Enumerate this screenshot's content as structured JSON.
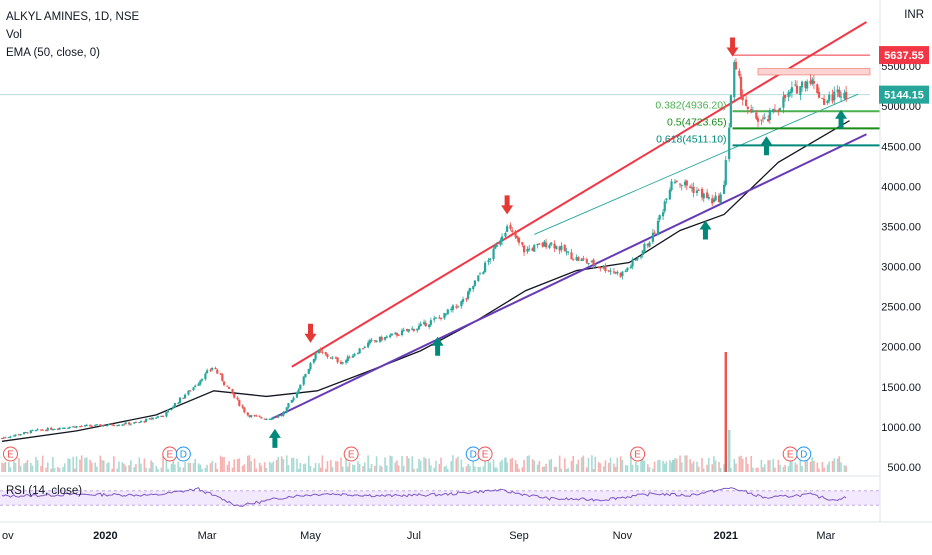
{
  "header": {
    "title": "ALKYL AMINES, 1D, NSE",
    "volume_label": "Vol",
    "ema_label": "EMA (50, close, 0)",
    "rsi_label": "RSI (14, close)",
    "currency": "INR"
  },
  "chart_data": {
    "type": "line",
    "title": "ALKYL AMINES, 1D, NSE",
    "ylim": [
      400,
      6100
    ],
    "y_ticks": [
      500,
      1000,
      1500,
      2000,
      2500,
      3000,
      3500,
      4000,
      4500,
      5000,
      5500
    ],
    "y_tick_labels": [
      "500.00",
      "1000.00",
      "1500.00",
      "2000.00",
      "2500.00",
      "3000.00",
      "3500.00",
      "4000.00",
      "4500.00",
      "5000.00",
      "5500.00"
    ],
    "x_tick_labels": [
      "ov",
      "2020",
      "Mar",
      "May",
      "Jul",
      "Sep",
      "Nov",
      "2021",
      "Mar"
    ],
    "x_tick_dates": [
      "2019-11-01",
      "2020-01-01",
      "2020-03-01",
      "2020-05-01",
      "2020-07-01",
      "2020-09-01",
      "2020-11-01",
      "2021-01-01",
      "2021-03-01"
    ],
    "grid": false,
    "price": [
      {
        "x": "2019-11-01",
        "y": 860
      },
      {
        "x": "2019-11-20",
        "y": 950
      },
      {
        "x": "2019-12-10",
        "y": 1000
      },
      {
        "x": "2019-12-31",
        "y": 1020
      },
      {
        "x": "2020-01-20",
        "y": 1050
      },
      {
        "x": "2020-02-05",
        "y": 1150
      },
      {
        "x": "2020-02-20",
        "y": 1450
      },
      {
        "x": "2020-03-05",
        "y": 1750
      },
      {
        "x": "2020-03-15",
        "y": 1450
      },
      {
        "x": "2020-03-25",
        "y": 1150
      },
      {
        "x": "2020-04-05",
        "y": 1100
      },
      {
        "x": "2020-04-15",
        "y": 1150
      },
      {
        "x": "2020-04-25",
        "y": 1500
      },
      {
        "x": "2020-05-05",
        "y": 1950
      },
      {
        "x": "2020-05-20",
        "y": 1800
      },
      {
        "x": "2020-06-05",
        "y": 2050
      },
      {
        "x": "2020-06-20",
        "y": 2150
      },
      {
        "x": "2020-07-05",
        "y": 2250
      },
      {
        "x": "2020-07-20",
        "y": 2400
      },
      {
        "x": "2020-08-01",
        "y": 2600
      },
      {
        "x": "2020-08-15",
        "y": 3100
      },
      {
        "x": "2020-08-25",
        "y": 3500
      },
      {
        "x": "2020-09-05",
        "y": 3200
      },
      {
        "x": "2020-09-20",
        "y": 3300
      },
      {
        "x": "2020-10-05",
        "y": 3100
      },
      {
        "x": "2020-10-20",
        "y": 3000
      },
      {
        "x": "2020-11-01",
        "y": 2900
      },
      {
        "x": "2020-11-10",
        "y": 3100
      },
      {
        "x": "2020-11-20",
        "y": 3400
      },
      {
        "x": "2020-12-01",
        "y": 4100
      },
      {
        "x": "2020-12-15",
        "y": 3950
      },
      {
        "x": "2020-12-25",
        "y": 3800
      },
      {
        "x": "2020-12-31",
        "y": 3900
      },
      {
        "x": "2021-01-06",
        "y": 5500
      },
      {
        "x": "2021-01-15",
        "y": 4900
      },
      {
        "x": "2021-01-25",
        "y": 4800
      },
      {
        "x": "2021-02-05",
        "y": 5100
      },
      {
        "x": "2021-02-20",
        "y": 5350
      },
      {
        "x": "2021-03-01",
        "y": 5050
      },
      {
        "x": "2021-03-10",
        "y": 5200
      },
      {
        "x": "2021-03-15",
        "y": 5144
      }
    ],
    "ema": [
      {
        "x": "2019-11-01",
        "y": 820
      },
      {
        "x": "2019-12-15",
        "y": 950
      },
      {
        "x": "2020-01-31",
        "y": 1150
      },
      {
        "x": "2020-03-05",
        "y": 1450
      },
      {
        "x": "2020-04-05",
        "y": 1380
      },
      {
        "x": "2020-05-05",
        "y": 1450
      },
      {
        "x": "2020-06-05",
        "y": 1700
      },
      {
        "x": "2020-07-05",
        "y": 1950
      },
      {
        "x": "2020-08-05",
        "y": 2300
      },
      {
        "x": "2020-09-05",
        "y": 2700
      },
      {
        "x": "2020-10-05",
        "y": 2950
      },
      {
        "x": "2020-11-05",
        "y": 3050
      },
      {
        "x": "2020-12-05",
        "y": 3450
      },
      {
        "x": "2020-12-31",
        "y": 3650
      },
      {
        "x": "2021-02-01",
        "y": 4300
      },
      {
        "x": "2021-03-15",
        "y": 4820
      }
    ],
    "trendlines": [
      {
        "name": "upper-channel",
        "color": "#f23645",
        "from": {
          "x": "2020-04-20",
          "y": 1750
        },
        "to": {
          "x": "2021-03-25",
          "y": 6050
        }
      },
      {
        "name": "lower-channel",
        "color": "#673ab7",
        "from": {
          "x": "2020-04-08",
          "y": 1100
        },
        "to": {
          "x": "2021-03-25",
          "y": 4650
        }
      },
      {
        "name": "thin-channel",
        "color": "#26a69a",
        "from": {
          "x": "2020-09-10",
          "y": 3400
        },
        "to": {
          "x": "2021-03-20",
          "y": 5150
        }
      }
    ],
    "resistance": {
      "value": 5637.55,
      "label": "5637.55",
      "color": "#f23645"
    },
    "last_price": {
      "value": 5144.15,
      "label": "5144.15",
      "color": "#26a69a"
    },
    "fib_levels": [
      {
        "label": "0.382(4936.20)",
        "value": 4936.2,
        "color": "#4caf50"
      },
      {
        "label": "0.5(4723.65)",
        "value": 4723.65,
        "color": "#1b8a1b"
      },
      {
        "label": "0.618(4511.10)",
        "value": 4511.1,
        "color": "#00897b"
      }
    ],
    "down_arrows": [
      {
        "x": "2020-05-01",
        "y": 2050
      },
      {
        "x": "2020-08-25",
        "y": 3650
      },
      {
        "x": "2021-01-05",
        "y": 5620
      }
    ],
    "up_arrows": [
      {
        "x": "2020-04-10",
        "y": 1000
      },
      {
        "x": "2020-07-15",
        "y": 2150
      },
      {
        "x": "2020-12-20",
        "y": 3600
      },
      {
        "x": "2021-01-25",
        "y": 4650
      },
      {
        "x": "2021-03-10",
        "y": 4980
      }
    ],
    "earnings_markers": [
      {
        "x": "2019-11-06",
        "label": "E",
        "type": "earnings"
      },
      {
        "x": "2020-02-08",
        "label": "E",
        "type": "earnings"
      },
      {
        "x": "2020-02-16",
        "label": "D",
        "type": "dividend"
      },
      {
        "x": "2020-05-25",
        "label": "E",
        "type": "earnings"
      },
      {
        "x": "2020-08-05",
        "label": "D",
        "type": "dividend"
      },
      {
        "x": "2020-08-12",
        "label": "E",
        "type": "earnings"
      },
      {
        "x": "2020-11-10",
        "label": "E",
        "type": "earnings"
      },
      {
        "x": "2021-02-08",
        "label": "E",
        "type": "earnings"
      },
      {
        "x": "2021-02-16",
        "label": "D",
        "type": "dividend"
      }
    ],
    "volume_spikes": [
      {
        "x": "2021-01-01",
        "v": 1.0
      },
      {
        "x": "2021-01-03",
        "v": 0.35
      },
      {
        "x": "2020-08-24",
        "v": 0.12
      },
      {
        "x": "2020-12-01",
        "v": 0.1
      }
    ],
    "rsi_band": [
      30,
      70
    ],
    "rsi_ylim": [
      0,
      100
    ],
    "rsi": [
      {
        "x": "2019-11-01",
        "y": 55
      },
      {
        "x": "2019-12-15",
        "y": 60
      },
      {
        "x": "2020-01-31",
        "y": 58
      },
      {
        "x": "2020-02-25",
        "y": 75
      },
      {
        "x": "2020-03-20",
        "y": 28
      },
      {
        "x": "2020-04-20",
        "y": 55
      },
      {
        "x": "2020-05-10",
        "y": 62
      },
      {
        "x": "2020-06-15",
        "y": 56
      },
      {
        "x": "2020-07-20",
        "y": 60
      },
      {
        "x": "2020-08-20",
        "y": 72
      },
      {
        "x": "2020-09-20",
        "y": 48
      },
      {
        "x": "2020-10-20",
        "y": 45
      },
      {
        "x": "2020-11-20",
        "y": 62
      },
      {
        "x": "2020-12-10",
        "y": 57
      },
      {
        "x": "2021-01-05",
        "y": 78
      },
      {
        "x": "2021-01-25",
        "y": 50
      },
      {
        "x": "2021-02-20",
        "y": 60
      },
      {
        "x": "2021-03-05",
        "y": 45
      },
      {
        "x": "2021-03-15",
        "y": 52
      }
    ],
    "colors": {
      "up": "#26a69a",
      "down": "#ef5350",
      "ema": "#131722",
      "rsi": "#7e57c2",
      "rsi_band_fill": "#f3e9ff",
      "earnings": "#ef5350",
      "dividend": "#2196f3"
    }
  }
}
